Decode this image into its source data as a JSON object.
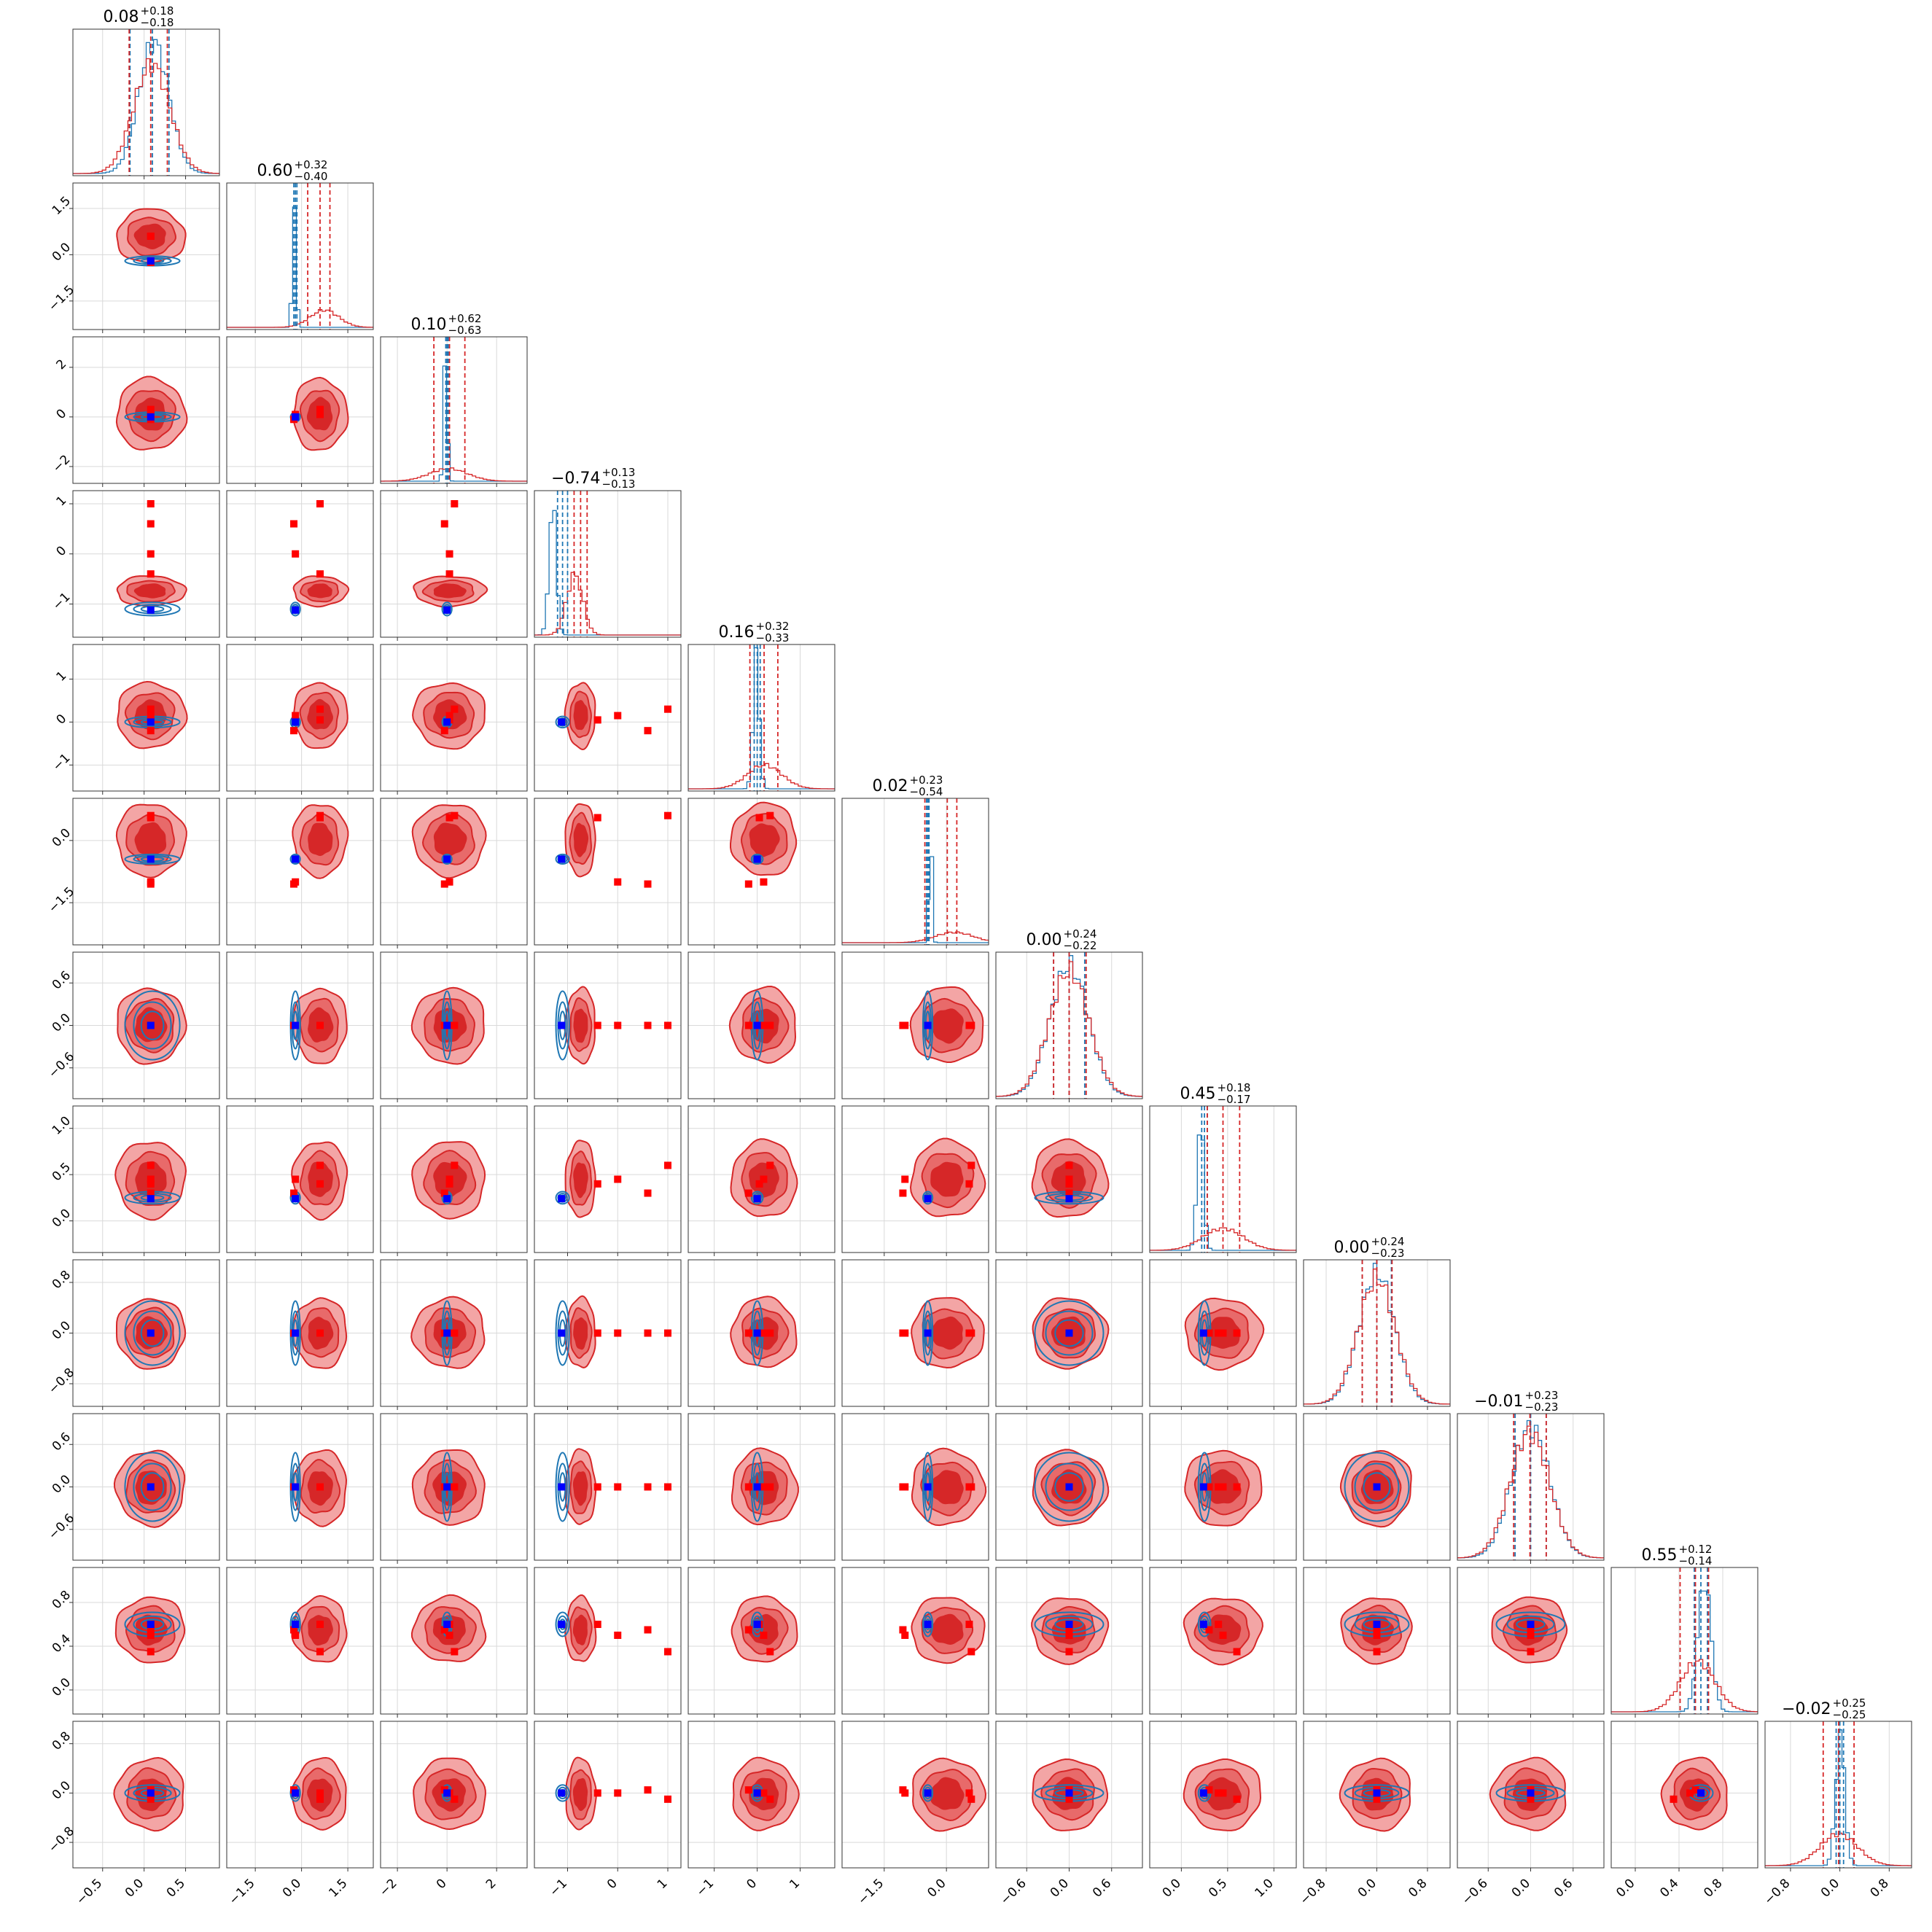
{
  "chart_data": {
    "type": "corner",
    "n_params": 12,
    "colors": {
      "reference": "#1f77b4",
      "posterior": "#d62728",
      "truth_marker": "#0000ff",
      "outlier_marker": "#ff0000",
      "axis": "#333333",
      "grid": "#d9d9d9"
    },
    "grid": true,
    "parameters": [
      {
        "title": "0.08",
        "err_plus": "0.18",
        "err_minus": "0.18",
        "range": [
          -0.7,
          0.75
        ],
        "ticks": [
          -0.5,
          0.0,
          0.5
        ],
        "tick_labels": [
          "−0.5",
          "0.0",
          "0.5"
        ],
        "truth": 0.08,
        "ref_mean": 0.1,
        "ref_sd": 0.15,
        "post_mean": 0.08,
        "post_sd": 0.18,
        "q_ref": [
          -0.17,
          0.1,
          0.3
        ],
        "q_post": [
          -0.18,
          0.08,
          0.28
        ],
        "outliers": [
          0.08,
          0.08,
          0.08,
          0.08
        ]
      },
      {
        "title": "0.60",
        "err_plus": "0.32",
        "err_minus": "0.40",
        "range": [
          -2.0,
          1.9
        ],
        "ticks": [
          -1.5,
          0.0,
          1.5
        ],
        "tick_labels": [
          "−1.5",
          "0.0",
          "1.5"
        ],
        "truth": -0.2,
        "ref_mean": -0.2,
        "ref_sd": 0.05,
        "post_mean": 0.6,
        "post_sd": 0.38,
        "q_ref": [
          -0.25,
          -0.2,
          -0.15
        ],
        "q_post": [
          0.2,
          0.6,
          0.92
        ],
        "outliers": [
          -0.2,
          -0.25,
          0.6,
          0.6
        ]
      },
      {
        "title": "0.10",
        "err_plus": "0.62",
        "err_minus": "0.63",
        "range": [
          -2.15,
          2.7
        ],
        "ticks": [
          -2,
          0,
          2
        ],
        "tick_labels": [
          "−2",
          "0",
          "2"
        ],
        "truth": 0.0,
        "ref_mean": 0.0,
        "ref_sd": 0.06,
        "post_mean": 0.1,
        "post_sd": 0.63,
        "q_ref": [
          -0.05,
          0.0,
          0.05
        ],
        "q_post": [
          -0.53,
          0.1,
          0.72
        ],
        "outliers": [
          0.1,
          -0.1,
          0.3,
          0.1
        ]
      },
      {
        "title": "−0.74",
        "err_plus": "0.13",
        "err_minus": "0.13",
        "range": [
          -1.4,
          1.0
        ],
        "ticks": [
          -1,
          0,
          1
        ],
        "tick_labels": [
          "−1",
          "0",
          "1"
        ],
        "truth": -1.12,
        "ref_mean": -1.1,
        "ref_sd": 0.06,
        "post_mean": -0.74,
        "post_sd": 0.13,
        "q_ref": [
          -1.2,
          -1.1,
          -1.0
        ],
        "q_post": [
          -0.87,
          -0.74,
          -0.61
        ],
        "outliers": [
          0.0,
          0.6,
          1.0,
          -0.4
        ]
      },
      {
        "title": "0.16",
        "err_plus": "0.32",
        "err_minus": "0.33",
        "range": [
          -1.3,
          1.5
        ],
        "ticks": [
          -1,
          0,
          1
        ],
        "tick_labels": [
          "−1",
          "0",
          "1"
        ],
        "truth": 0.0,
        "ref_mean": 0.0,
        "ref_sd": 0.06,
        "post_mean": 0.16,
        "post_sd": 0.33,
        "q_ref": [
          -0.07,
          0.0,
          0.07
        ],
        "q_post": [
          -0.17,
          0.16,
          0.48
        ],
        "outliers": [
          0.15,
          -0.2,
          0.3,
          0.05
        ]
      },
      {
        "title": "0.02",
        "err_plus": "0.23",
        "err_minus": "0.54",
        "range": [
          -2.2,
          0.7
        ],
        "ticks": [
          -1.5,
          0.0
        ],
        "tick_labels": [
          "−1.5",
          "0.0"
        ],
        "truth": -0.45,
        "ref_mean": -0.45,
        "ref_sd": 0.03,
        "post_mean": 0.02,
        "post_sd": 0.38,
        "q_ref": [
          -0.48,
          -0.45,
          -0.42
        ],
        "q_post": [
          -0.52,
          0.02,
          0.25
        ],
        "outliers": [
          -1.0,
          -1.05,
          0.6,
          0.55
        ]
      },
      {
        "title": "0.00",
        "err_plus": "0.24",
        "err_minus": "0.22",
        "range": [
          -0.85,
          0.85
        ],
        "ticks": [
          -0.6,
          0.0,
          0.6
        ],
        "tick_labels": [
          "−0.6",
          "0.0",
          "0.6"
        ],
        "truth": 0.0,
        "ref_mean": 0.0,
        "ref_sd": 0.22,
        "post_mean": 0.0,
        "post_sd": 0.23,
        "q_ref": [
          -0.22,
          0.0,
          0.22
        ],
        "q_post": [
          -0.22,
          0.0,
          0.24
        ],
        "outliers": [
          0.0,
          0.0,
          0.0,
          0.0
        ]
      },
      {
        "title": "0.45",
        "err_plus": "0.18",
        "err_minus": "0.17",
        "range": [
          -0.2,
          1.1
        ],
        "ticks": [
          0.0,
          0.5,
          1.0
        ],
        "tick_labels": [
          "0.0",
          "0.5",
          "1.0"
        ],
        "truth": 0.24,
        "ref_mean": 0.25,
        "ref_sd": 0.03,
        "post_mean": 0.45,
        "post_sd": 0.18,
        "q_ref": [
          0.22,
          0.25,
          0.28
        ],
        "q_post": [
          0.28,
          0.45,
          0.63
        ],
        "outliers": [
          0.45,
          0.3,
          0.6,
          0.4
        ]
      },
      {
        "title": "0.00",
        "err_plus": "0.24",
        "err_minus": "0.23",
        "range": [
          -0.95,
          0.95
        ],
        "ticks": [
          -0.8,
          0.0,
          0.8
        ],
        "tick_labels": [
          "−0.8",
          "0.0",
          "0.8"
        ],
        "truth": 0.0,
        "ref_mean": 0.0,
        "ref_sd": 0.23,
        "post_mean": 0.0,
        "post_sd": 0.24,
        "q_ref": [
          -0.23,
          0.0,
          0.23
        ],
        "q_post": [
          -0.23,
          0.0,
          0.24
        ],
        "outliers": [
          0.0,
          0.0,
          0.0,
          0.0
        ]
      },
      {
        "title": "−0.01",
        "err_plus": "0.23",
        "err_minus": "0.23",
        "range": [
          -0.85,
          0.85
        ],
        "ticks": [
          -0.6,
          0.0,
          0.6
        ],
        "tick_labels": [
          "−0.6",
          "0.0",
          "0.6"
        ],
        "truth": 0.0,
        "ref_mean": 0.0,
        "ref_sd": 0.22,
        "post_mean": -0.01,
        "post_sd": 0.23,
        "q_ref": [
          -0.22,
          0.0,
          0.22
        ],
        "q_post": [
          -0.24,
          -0.01,
          0.22
        ],
        "outliers": [
          0.0,
          0.0,
          0.0,
          0.0
        ]
      },
      {
        "title": "0.55",
        "err_plus": "0.12",
        "err_minus": "0.14",
        "range": [
          -0.1,
          1.0
        ],
        "ticks": [
          0.0,
          0.4,
          0.8
        ],
        "tick_labels": [
          "0.0",
          "0.4",
          "0.8"
        ],
        "truth": 0.6,
        "ref_mean": 0.6,
        "ref_sd": 0.05,
        "post_mean": 0.55,
        "post_sd": 0.13,
        "q_ref": [
          0.54,
          0.6,
          0.66
        ],
        "q_post": [
          0.41,
          0.55,
          0.67
        ],
        "outliers": [
          0.5,
          0.55,
          0.35,
          0.6
        ]
      },
      {
        "title": "−0.02",
        "err_plus": "0.25",
        "err_minus": "0.25",
        "range": [
          -1.0,
          0.95
        ],
        "ticks": [
          -0.8,
          0.0,
          0.8
        ],
        "tick_labels": [
          "−0.8",
          "0.0",
          "0.8"
        ],
        "truth": 0.0,
        "ref_mean": 0.0,
        "ref_sd": 0.06,
        "post_mean": -0.02,
        "post_sd": 0.25,
        "q_ref": [
          -0.06,
          0.0,
          0.06
        ],
        "q_post": [
          -0.27,
          -0.02,
          0.23
        ],
        "outliers": [
          0.0,
          0.05,
          -0.1,
          0.0
        ]
      }
    ]
  }
}
